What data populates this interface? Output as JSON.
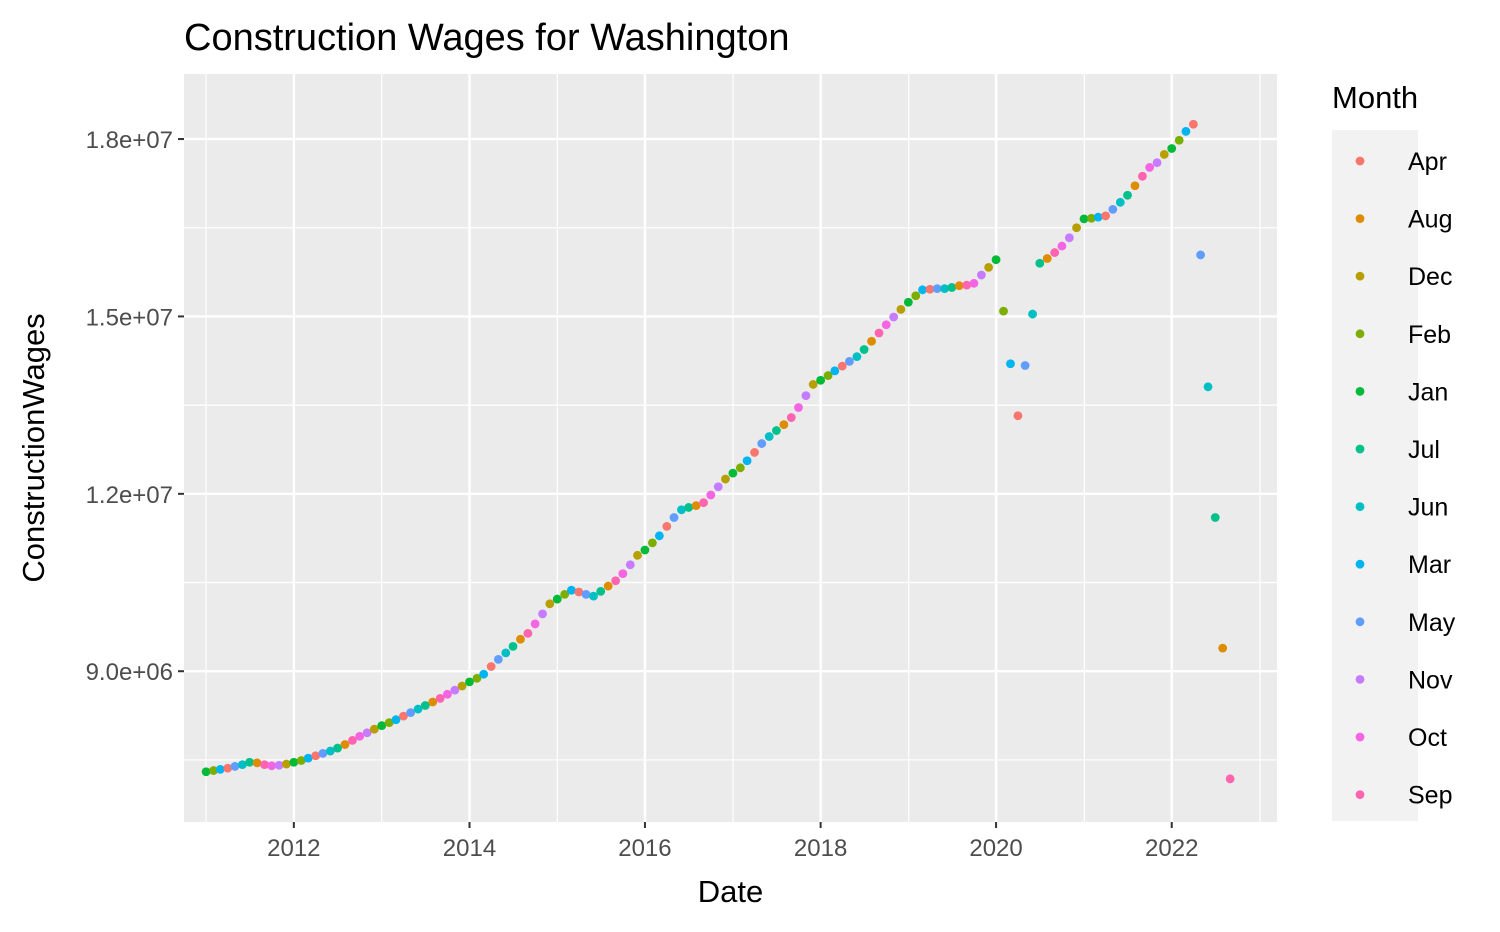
{
  "chart_data": {
    "type": "scatter",
    "title": "Construction Wages for Washington",
    "xlabel": "Date",
    "ylabel": "ConstructionWages",
    "xlim": [
      "2010-10-01",
      "2023-03-15"
    ],
    "ylim": [
      6450000,
      19100000
    ],
    "x_ticks": [
      {
        "value": "2012-01-01",
        "label": "2012"
      },
      {
        "value": "2014-01-01",
        "label": "2014"
      },
      {
        "value": "2016-01-01",
        "label": "2016"
      },
      {
        "value": "2018-01-01",
        "label": "2018"
      },
      {
        "value": "2020-01-01",
        "label": "2020"
      },
      {
        "value": "2022-01-01",
        "label": "2022"
      }
    ],
    "y_ticks": [
      {
        "value": 9000000,
        "label": "9.0e+06"
      },
      {
        "value": 12000000,
        "label": "1.2e+07"
      },
      {
        "value": 15000000,
        "label": "1.5e+07"
      },
      {
        "value": 18000000,
        "label": "1.8e+07"
      }
    ],
    "grid": true,
    "legend": {
      "title": "Month",
      "position": "right",
      "entries": [
        "Apr",
        "Aug",
        "Dec",
        "Feb",
        "Jan",
        "Jul",
        "Jun",
        "Mar",
        "May",
        "Nov",
        "Oct",
        "Sep"
      ]
    },
    "colors": {
      "Apr": "#F8766D",
      "Aug": "#DE8C00",
      "Dec": "#B79F00",
      "Feb": "#7CAE00",
      "Jan": "#00BA38",
      "Jul": "#00C08B",
      "Jun": "#00BFC4",
      "Mar": "#00B4F0",
      "May": "#619CFF",
      "Nov": "#C77CFF",
      "Oct": "#F564E3",
      "Sep": "#FF64B0"
    },
    "series": [
      {
        "year": 2011,
        "values": [
          7300000,
          7320000,
          7340000,
          7360000,
          7390000,
          7420000,
          7460000,
          7450000,
          7420000,
          7400000,
          7410000,
          7430000
        ]
      },
      {
        "year": 2012,
        "values": [
          7460000,
          7490000,
          7530000,
          7570000,
          7610000,
          7650000,
          7700000,
          7760000,
          7830000,
          7900000,
          7960000,
          8020000
        ]
      },
      {
        "year": 2013,
        "values": [
          8080000,
          8130000,
          8180000,
          8240000,
          8300000,
          8360000,
          8420000,
          8480000,
          8540000,
          8610000,
          8680000,
          8750000
        ]
      },
      {
        "year": 2014,
        "values": [
          8820000,
          8880000,
          8950000,
          9080000,
          9200000,
          9310000,
          9420000,
          9540000,
          9640000,
          9800000,
          9970000,
          10140000
        ]
      },
      {
        "year": 2015,
        "values": [
          10220000,
          10300000,
          10370000,
          10340000,
          10300000,
          10270000,
          10350000,
          10440000,
          10530000,
          10650000,
          10800000,
          10960000
        ]
      },
      {
        "year": 2016,
        "values": [
          11050000,
          11170000,
          11290000,
          11450000,
          11600000,
          11730000,
          11770000,
          11800000,
          11850000,
          11980000,
          12120000,
          12250000
        ]
      },
      {
        "year": 2017,
        "values": [
          12350000,
          12440000,
          12560000,
          12700000,
          12850000,
          12970000,
          13070000,
          13170000,
          13290000,
          13460000,
          13660000,
          13850000
        ]
      },
      {
        "year": 2018,
        "values": [
          13920000,
          14000000,
          14080000,
          14160000,
          14240000,
          14320000,
          14440000,
          14580000,
          14720000,
          14860000,
          14990000,
          15120000
        ]
      },
      {
        "year": 2019,
        "values": [
          15240000,
          15350000,
          15450000,
          15460000,
          15470000,
          15470000,
          15490000,
          15520000,
          15530000,
          15560000,
          15700000,
          15830000
        ]
      },
      {
        "year": 2020,
        "values": [
          15960000,
          15090000,
          14200000,
          13320000,
          14170000,
          15040000,
          15900000,
          15980000,
          16080000,
          16190000,
          16330000,
          16500000
        ]
      },
      {
        "year": 2021,
        "values": [
          16650000,
          16660000,
          16680000,
          16700000,
          16810000,
          16930000,
          17050000,
          17210000,
          17370000,
          17520000,
          17600000,
          17740000
        ]
      },
      {
        "year": 2022,
        "values": [
          17840000,
          17980000,
          18130000,
          18250000,
          16040000,
          13810000,
          11600000,
          9390000,
          7180000
        ]
      }
    ]
  }
}
